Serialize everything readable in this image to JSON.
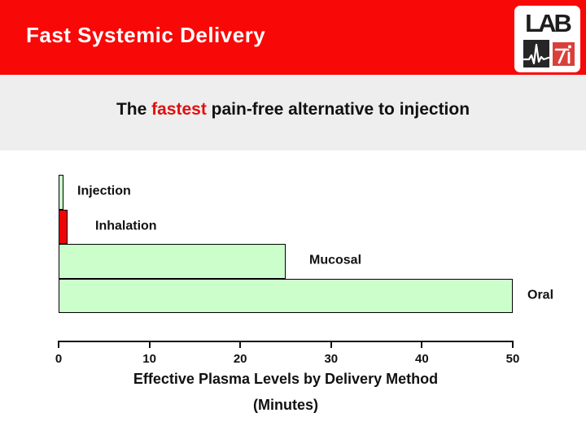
{
  "slide": {
    "title": "Fast Systemic Delivery",
    "subtitle_prefix": "The ",
    "subtitle_highlight": "fastest",
    "subtitle_suffix": " pain-free alternative to injection"
  },
  "logo": {
    "text": "LAB",
    "ecg_icon": "ecg-waveform-icon",
    "mark": "7i"
  },
  "chart_data": {
    "type": "bar",
    "orientation": "horizontal",
    "categories": [
      "Injection",
      "Inhalation",
      "Mucosal",
      "Oral"
    ],
    "values": [
      0.5,
      1,
      25,
      50
    ],
    "bar_colors": [
      "#ccfecc",
      "#ee0505",
      "#ccfecc",
      "#ccfecc"
    ],
    "x_ticks": [
      "0",
      "10",
      "20",
      "30",
      "40",
      "50"
    ],
    "xlim": [
      0,
      50
    ],
    "grid": false,
    "legend": false,
    "xlabel_line1": "Effective Plasma Levels by Delivery Method",
    "xlabel_line2": "(Minutes)"
  },
  "colors": {
    "header_red": "#f90808",
    "subtitle_band_gray": "#eeeeee",
    "highlight_red": "#e01010",
    "bar_green": "#ccfecc",
    "bar_red": "#ee0505",
    "logo_mark_red": "#d9403c",
    "text_black": "#111111",
    "title_white": "#ffffff"
  }
}
